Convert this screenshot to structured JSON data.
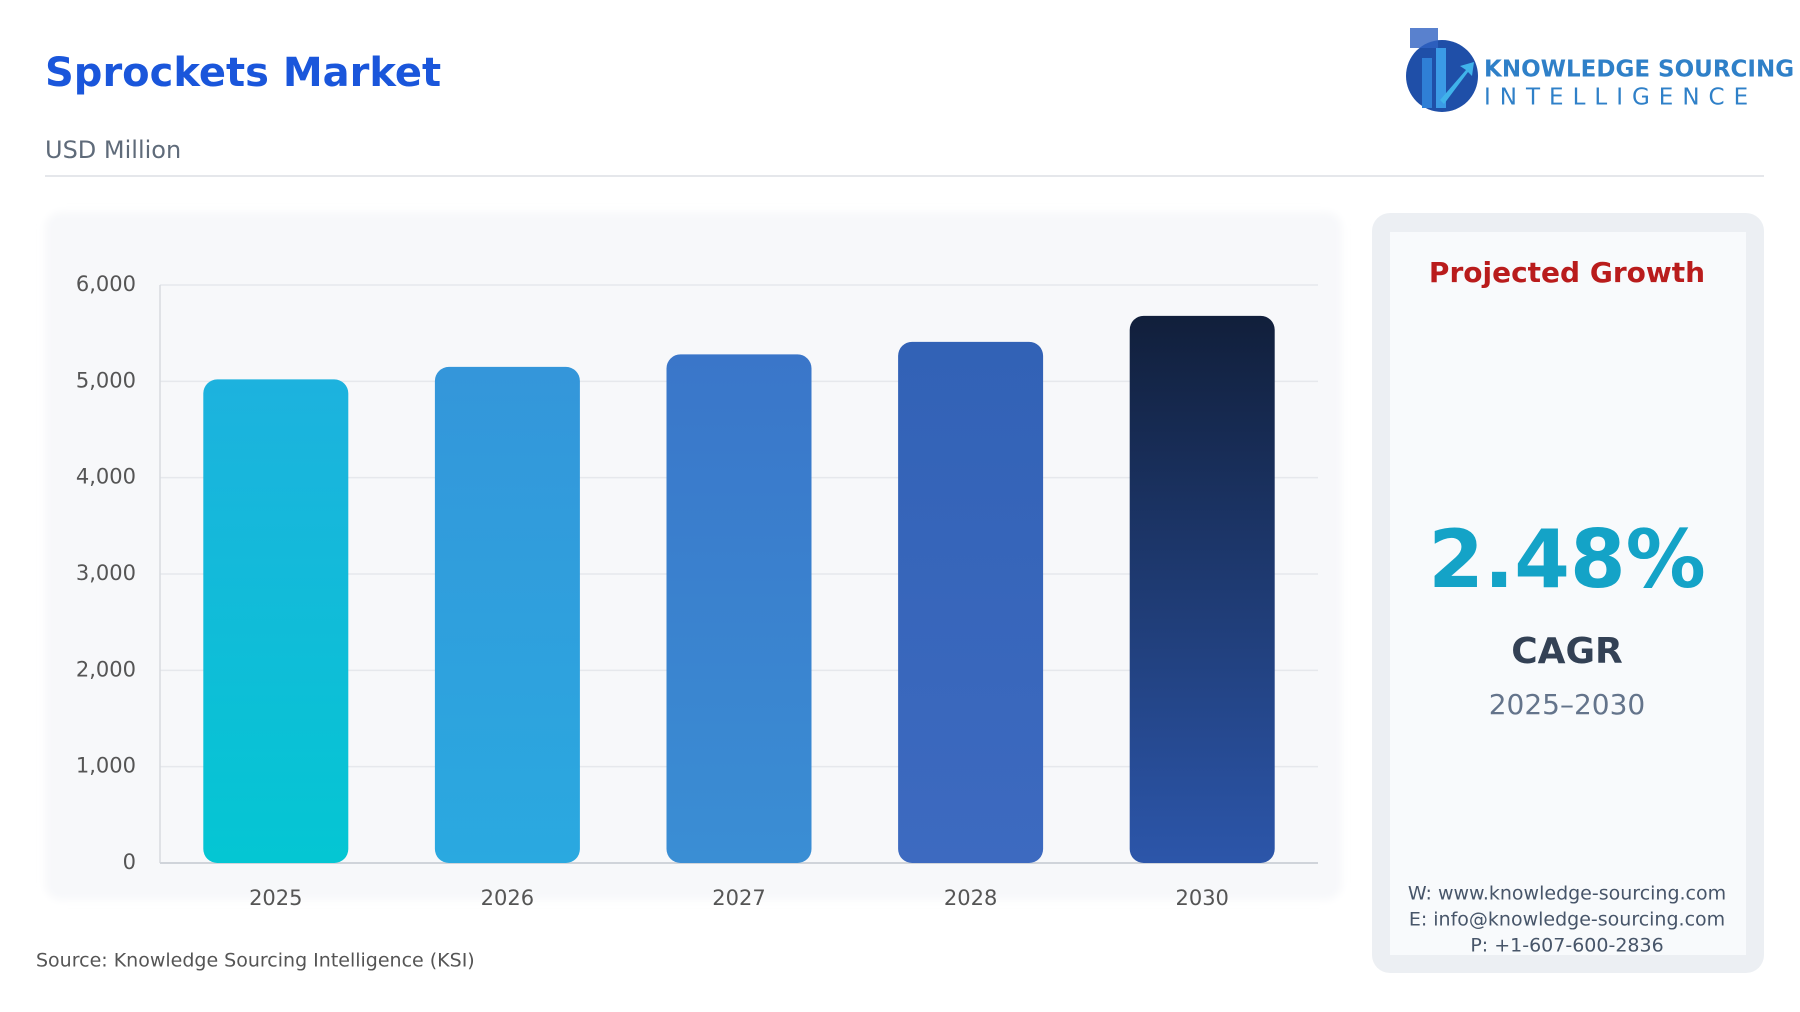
{
  "chart_data": {
    "type": "bar",
    "title": "Sprockets Market",
    "subtitle": "USD Million",
    "categories": [
      "2025",
      "2026",
      "2027",
      "2028",
      "2030"
    ],
    "values": [
      5020,
      5150,
      5280,
      5410,
      5680
    ],
    "gradients": [
      [
        "#1db2de",
        "#04c6d3"
      ],
      [
        "#3496da",
        "#2aa9e0"
      ],
      [
        "#3a76c9",
        "#3a8ed4"
      ],
      [
        "#3262b6",
        "#3d6ac0"
      ],
      [
        "#111f3b",
        "#2c56aa"
      ]
    ],
    "ylim": [
      0,
      6000
    ],
    "yticks": [
      0,
      {
        "value": 1000,
        "label": "1,000"
      },
      {
        "value": 2000,
        "label": "2,000"
      },
      {
        "value": 3000,
        "label": "3,000"
      },
      {
        "value": 4000,
        "label": "4,000"
      },
      {
        "value": 5000,
        "label": "5,000"
      },
      {
        "value": 6000,
        "label": "6,000"
      }
    ],
    "grid": true,
    "source": "Source: Knowledge Sourcing Intelligence (KSI)"
  },
  "logo": {
    "line1": "KNOWLEDGE SOURCING",
    "line2": "INTELLIGENCE"
  },
  "panel": {
    "title": "Projected Growth",
    "value": "2.48%",
    "label": "CAGR",
    "period": "2025–2030",
    "contacts": [
      "W: www.knowledge-sourcing.com",
      "E: info@knowledge-sourcing.com",
      "P: +1-607-600-2836"
    ]
  }
}
